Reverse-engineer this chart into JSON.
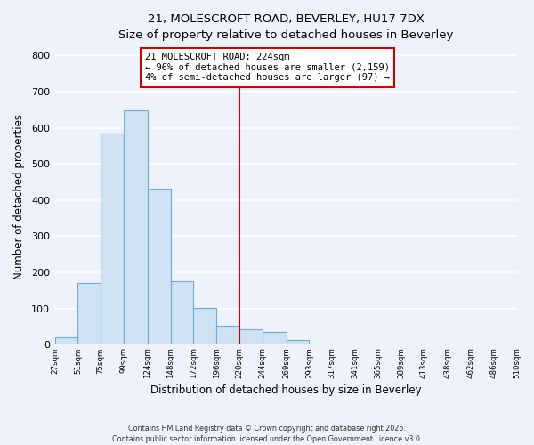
{
  "title_line1": "21, MOLESCROFT ROAD, BEVERLEY, HU17 7DX",
  "title_line2": "Size of property relative to detached houses in Beverley",
  "xlabel": "Distribution of detached houses by size in Beverley",
  "ylabel": "Number of detached properties",
  "bar_color": "#cfe2f3",
  "bar_edge_color": "#6baed6",
  "bin_labels": [
    "27sqm",
    "51sqm",
    "75sqm",
    "99sqm",
    "124sqm",
    "148sqm",
    "172sqm",
    "196sqm",
    "220sqm",
    "244sqm",
    "269sqm",
    "293sqm",
    "317sqm",
    "341sqm",
    "365sqm",
    "389sqm",
    "413sqm",
    "438sqm",
    "462sqm",
    "486sqm",
    "510sqm"
  ],
  "bin_edges": [
    27,
    51,
    75,
    99,
    124,
    148,
    172,
    196,
    220,
    244,
    269,
    293,
    317,
    341,
    365,
    389,
    413,
    438,
    462,
    486,
    510
  ],
  "bar_heights": [
    20,
    170,
    585,
    648,
    432,
    175,
    102,
    52,
    42,
    35,
    14,
    0,
    0,
    0,
    0,
    0,
    0,
    0,
    0,
    2,
    0
  ],
  "vline_x": 220,
  "vline_color": "#cc0000",
  "annotation_text_line1": "21 MOLESCROFT ROAD: 224sqm",
  "annotation_text_line2": "← 96% of detached houses are smaller (2,159)",
  "annotation_text_line3": "4% of semi-detached houses are larger (97) →",
  "ylim": [
    0,
    820
  ],
  "yticks": [
    0,
    100,
    200,
    300,
    400,
    500,
    600,
    700,
    800
  ],
  "background_color": "#eef2fb",
  "grid_color": "#ffffff",
  "footnote_line1": "Contains HM Land Registry data © Crown copyright and database right 2025.",
  "footnote_line2": "Contains public sector information licensed under the Open Government Licence v3.0."
}
